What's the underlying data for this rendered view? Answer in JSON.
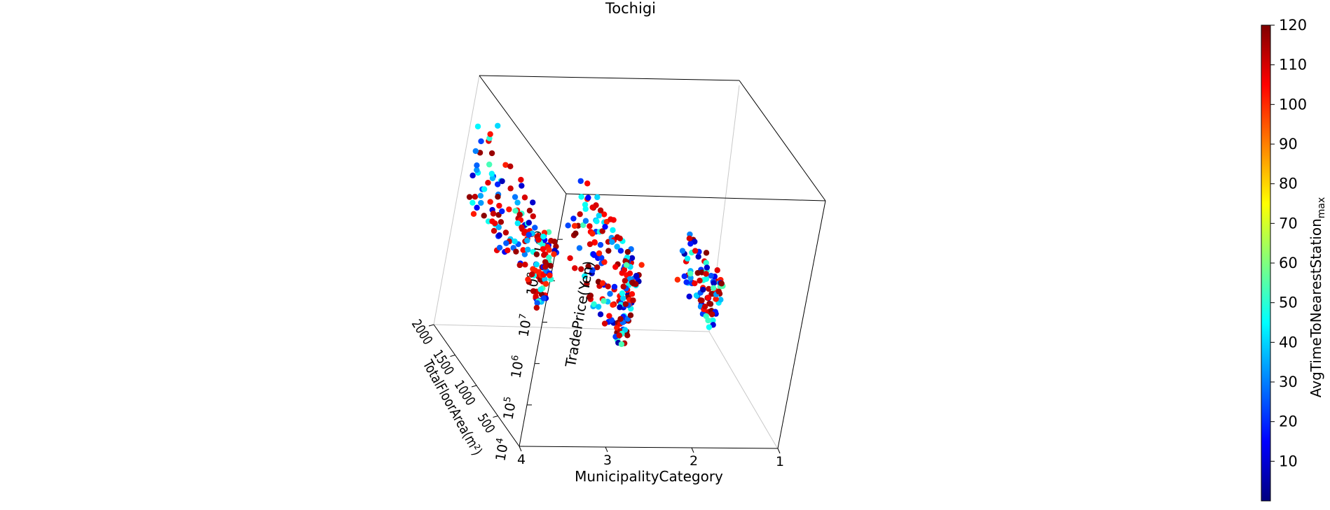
{
  "chart_data": {
    "type": "scatter",
    "title": "Tochigi",
    "xlabel": "MunicipalityCategory",
    "ylabel": "TotalFloorArea(m²)",
    "zlabel": "TradePrice(Yen)",
    "colorbar_label": "AvgTimeToNearestStation",
    "colorbar_label_subscript": "max",
    "colormap": "jet",
    "x_ticks": [
      "1",
      "2",
      "3",
      "4"
    ],
    "x_range": [
      1,
      4
    ],
    "y_ticks": [
      "500",
      "1000",
      "1500",
      "2000"
    ],
    "y_range": [
      0,
      2000
    ],
    "z_scale": "log",
    "z_tick_base": "10",
    "z_tick_exponents": [
      "4",
      "5",
      "6",
      "7",
      "8",
      "9"
    ],
    "z_range_exponent": [
      4,
      10
    ],
    "colorbar_ticks": [
      "10",
      "20",
      "30",
      "40",
      "50",
      "60",
      "70",
      "80",
      "90",
      "100",
      "110",
      "120"
    ],
    "colorbar_range": [
      0,
      120
    ],
    "colorbar_colors": [
      "#00007f",
      "#0000ff",
      "#007fff",
      "#00ffff",
      "#7fff7f",
      "#ffff00",
      "#ff7f00",
      "#ff0000",
      "#7f0000"
    ],
    "grid": false,
    "clusters": [
      {
        "municipality_category": 4,
        "total_floor_area_range": [
          50,
          1900
        ],
        "trade_price_log10_range": [
          5.9,
          9.6
        ],
        "color_value_range": [
          5,
          120
        ]
      },
      {
        "municipality_category": 3,
        "total_floor_area_range": [
          50,
          1500
        ],
        "trade_price_log10_range": [
          4.9,
          9.2
        ],
        "color_value_range": [
          5,
          120
        ]
      },
      {
        "municipality_category": 2,
        "total_floor_area_range": [
          50,
          900
        ],
        "trade_price_log10_range": [
          5.8,
          8.5
        ],
        "color_value_range": [
          5,
          120
        ]
      }
    ]
  }
}
